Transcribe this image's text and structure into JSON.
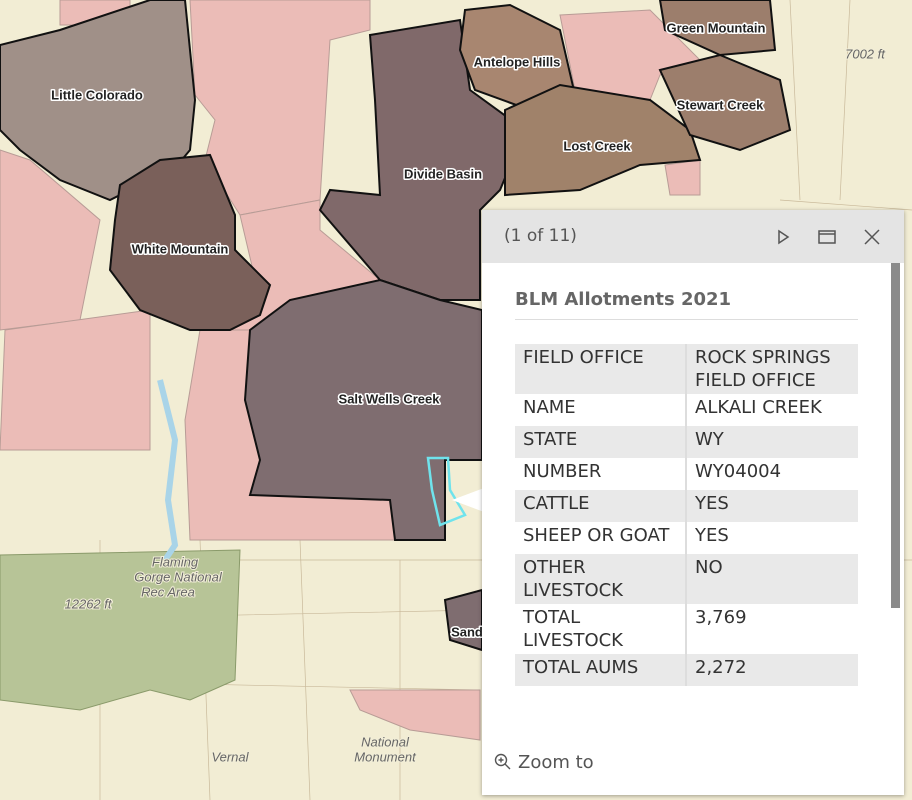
{
  "map": {
    "allotment_labels": [
      "Little Colorado",
      "Antelope Hills",
      "Green Mountain",
      "Stewart Creek",
      "Lost Creek",
      "Divide Basin",
      "White Mountain",
      "Salt Wells Creek",
      "Sand"
    ],
    "basemap_labels": [
      "Flaming",
      "Gorge National",
      "Rec Area",
      "12262 ft",
      "National",
      "Monument",
      "Vernal",
      "7002 ft"
    ]
  },
  "popup": {
    "counter": "(1 of 11)",
    "title": "BLM Allotments 2021",
    "rows": [
      [
        "FIELD OFFICE",
        "ROCK SPRINGS FIELD OFFICE"
      ],
      [
        "NAME",
        "ALKALI CREEK"
      ],
      [
        "STATE",
        "WY"
      ],
      [
        "NUMBER",
        "WY04004"
      ],
      [
        "CATTLE",
        "YES"
      ],
      [
        "SHEEP OR GOAT",
        "YES"
      ],
      [
        "OTHER LIVESTOCK",
        "NO"
      ],
      [
        "TOTAL LIVESTOCK",
        "3,769"
      ],
      [
        "TOTAL AUMS",
        "2,272"
      ]
    ],
    "action": "Zoom to"
  }
}
